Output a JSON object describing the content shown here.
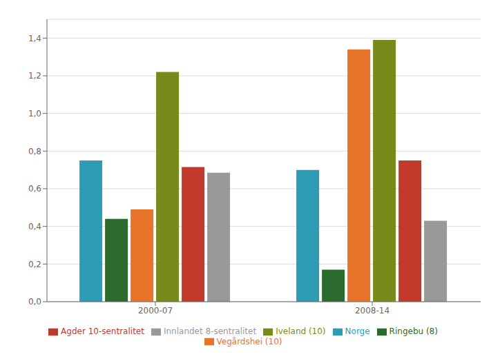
{
  "chart_data": {
    "type": "bar",
    "categories": [
      "2000-07",
      "2008-14"
    ],
    "series": [
      {
        "name": "Norge",
        "color": "#2E9BB5",
        "values": [
          0.75,
          0.7
        ]
      },
      {
        "name": "Ringebu (8)",
        "color": "#2D6A2D",
        "values": [
          0.44,
          0.17
        ]
      },
      {
        "name": "Vegårdshei (10)",
        "color": "#E8732A",
        "values": [
          0.49,
          1.34
        ]
      },
      {
        "name": "Iveland (10)",
        "color": "#7A8A1A",
        "values": [
          1.22,
          1.39
        ]
      },
      {
        "name": "Agder 10-sentralitet",
        "color": "#C0392B",
        "values": [
          0.715,
          0.75
        ]
      },
      {
        "name": "Innlandet 8-sentralitet",
        "color": "#999999",
        "values": [
          0.685,
          0.43
        ]
      }
    ],
    "ylim": [
      0,
      1.5
    ],
    "yticks": [
      {
        "value": 0.0,
        "label": "0,0"
      },
      {
        "value": 0.2,
        "label": "0,2"
      },
      {
        "value": 0.4,
        "label": "0,4"
      },
      {
        "value": 0.6,
        "label": "0,6"
      },
      {
        "value": 0.8,
        "label": "0,8"
      },
      {
        "value": 1.0,
        "label": "1,0"
      },
      {
        "value": 1.2,
        "label": "1,2"
      },
      {
        "value": 1.4,
        "label": "1,4"
      }
    ],
    "grid": true
  }
}
